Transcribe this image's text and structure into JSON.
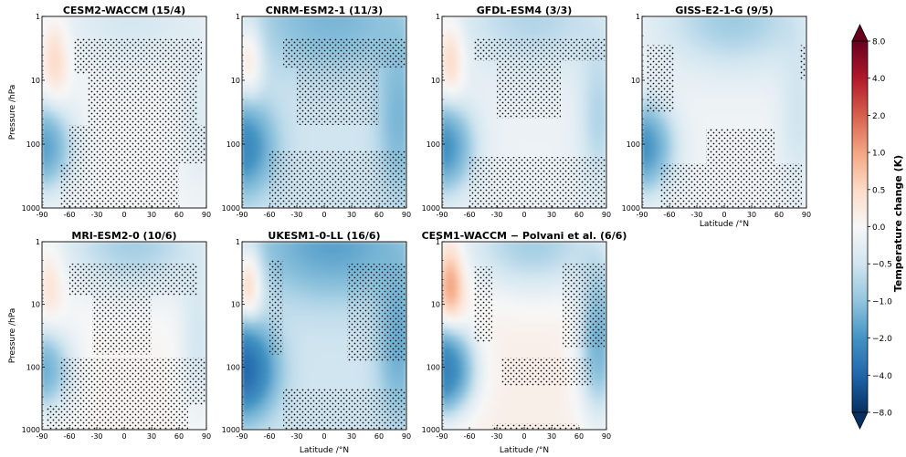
{
  "chart_data": {
    "type": "heatmap",
    "figure_layout": "2x4 grid of latitude-pressure contour panels with shared colorbar",
    "xlim": [
      -90,
      90
    ],
    "x_ticks": [
      -90,
      -60,
      -30,
      0,
      30,
      60,
      90
    ],
    "y_scale": "log",
    "ylim": [
      1000,
      1
    ],
    "y_ticks": [
      1,
      10,
      100,
      1000
    ],
    "ylabel": "Pressure /hPa",
    "xlabel": "Latitude /°N",
    "colorbar": {
      "label": "Temperature change (K)",
      "levels": [
        -8.0,
        -4.0,
        -2.0,
        -1.0,
        -0.5,
        0.0,
        0.5,
        1.0,
        2.0,
        4.0,
        8.0
      ],
      "tick_labels": [
        "−8.0",
        "−4.0",
        "−2.0",
        "−1.0",
        "−0.5",
        "0.0",
        "0.5",
        "1.0",
        "2.0",
        "4.0",
        "8.0"
      ],
      "colors": [
        "#053061",
        "#2166ac",
        "#4393c3",
        "#92c5de",
        "#d1e5f0",
        "#f7f7f7",
        "#fddbc7",
        "#f4a582",
        "#d6604d",
        "#b2182b",
        "#67001f"
      ],
      "extend": "both"
    },
    "panels": [
      {
        "title": "CESM2-WACCM (15/4)",
        "show_ylabel": true,
        "show_xlabel": false,
        "polar_min": -1.7,
        "nh_min": -0.3,
        "warm_max": 0.6,
        "warm_lat": -75,
        "upper": -0.4,
        "trop": -0.05
      },
      {
        "title": "CNRM-ESM2-1 (11/3)",
        "show_ylabel": false,
        "show_xlabel": false,
        "polar_min": -2.0,
        "nh_min": -0.8,
        "warm_max": 0.8,
        "warm_lat": -82,
        "upper": -0.8,
        "trop": -0.5
      },
      {
        "title": "GFDL-ESM4 (3/3)",
        "show_ylabel": false,
        "show_xlabel": false,
        "polar_min": -2.0,
        "nh_min": -0.6,
        "warm_max": 0.7,
        "warm_lat": -80,
        "upper": -0.6,
        "trop": -0.15
      },
      {
        "title": "GISS-E2-1-G (9/5)",
        "show_ylabel": false,
        "show_xlabel": true,
        "polar_min": -2.0,
        "nh_min": -0.4,
        "warm_max": 0.0,
        "warm_lat": -75,
        "upper": -0.8,
        "trop": -0.1
      },
      {
        "title": "MRI-ESM2-0 (10/6)",
        "show_ylabel": true,
        "show_xlabel": false,
        "polar_min": -1.5,
        "nh_min": -0.5,
        "warm_max": 0.4,
        "warm_lat": -80,
        "upper": -0.9,
        "trop": 0.05
      },
      {
        "title": "UKESM1-0-LL (16/6)",
        "show_ylabel": false,
        "show_xlabel": true,
        "polar_min": -3.5,
        "nh_min": -1.0,
        "warm_max": 1.1,
        "warm_lat": -82,
        "upper": -1.2,
        "trop": -0.5
      },
      {
        "title": "CESM1-WACCM − Polvani et al. (6/6)",
        "show_ylabel": false,
        "show_xlabel": true,
        "polar_min": -3.0,
        "nh_min": -1.5,
        "warm_max": 1.0,
        "warm_lat": -80,
        "upper": -1.0,
        "trop": 0.15
      }
    ]
  }
}
